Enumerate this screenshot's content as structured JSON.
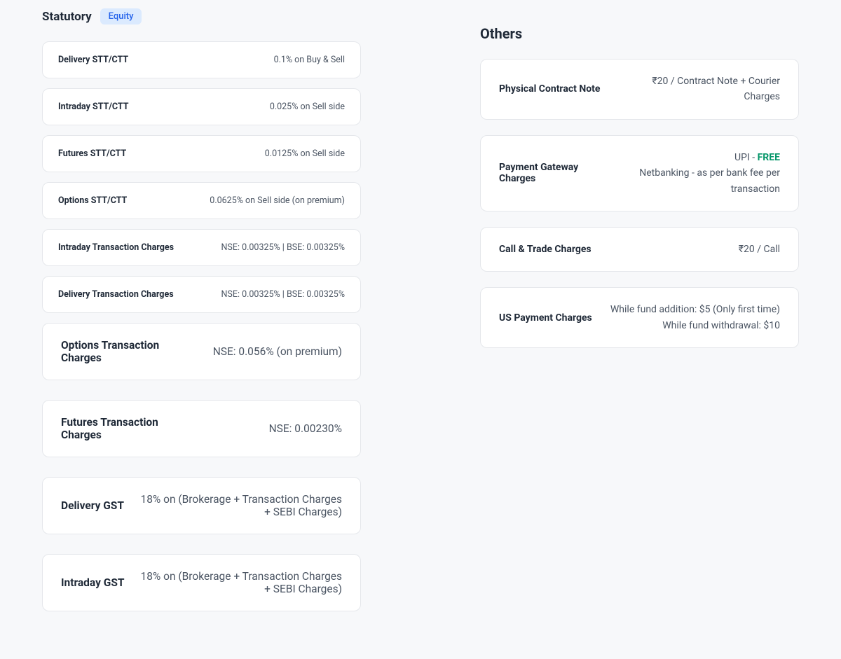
{
  "statutory": {
    "title": "Statutory",
    "badge": "Equity",
    "small_cards": [
      {
        "label": "Delivery STT/CTT",
        "value": "0.1% on Buy & Sell"
      },
      {
        "label": "Intraday STT/CTT",
        "value": "0.025% on Sell side"
      },
      {
        "label": "Futures STT/CTT",
        "value": "0.0125% on Sell side"
      },
      {
        "label": "Options STT/CTT",
        "value": "0.0625% on Sell side (on premium)"
      },
      {
        "label": "Intraday Transaction Charges",
        "value": "NSE: 0.00325% | BSE: 0.00325%"
      },
      {
        "label": "Delivery Transaction Charges",
        "value": "NSE: 0.00325% | BSE: 0.00325%"
      }
    ],
    "large_cards": [
      {
        "label": "Options Transaction Charges",
        "value": "NSE: 0.056% (on premium)"
      },
      {
        "label": "Futures Transaction Charges",
        "value": "NSE: 0.00230%"
      },
      {
        "label": "Delivery GST",
        "value": "18% on (Brokerage + Transaction Charges + SEBI Charges)"
      },
      {
        "label": "Intraday GST",
        "value": "18% on (Brokerage + Transaction Charges + SEBI Charges)"
      }
    ]
  },
  "others": {
    "title": "Others",
    "cards": [
      {
        "label": "Physical Contract Note",
        "value_html": "₹20 / Contract Note + Courier Charges"
      },
      {
        "label": "Payment Gateway Charges",
        "value_html": "UPI - <span class=\"free-text\">FREE</span><br>Netbanking - as per bank fee per transaction"
      },
      {
        "label": "Call & Trade Charges",
        "value_html": "₹20 / Call"
      },
      {
        "label": "US Payment Charges",
        "value_html": "While fund addition: $5 (Only first time)<br>While fund withdrawal: $10"
      }
    ]
  },
  "colors": {
    "background": "#f7f8fa",
    "card_bg": "#ffffff",
    "card_border": "#e5e7eb",
    "text_primary": "#1f2937",
    "text_secondary": "#4b5563",
    "badge_bg": "#dbeafe",
    "badge_text": "#2563eb",
    "free_text": "#059669"
  }
}
